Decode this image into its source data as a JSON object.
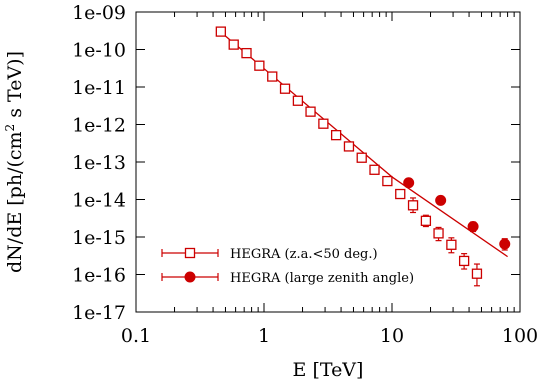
{
  "chart_data": {
    "type": "scatter",
    "scale": {
      "x": "log",
      "y": "log"
    },
    "xlim": [
      0.1,
      100
    ],
    "ylim": [
      1e-17,
      1e-09
    ],
    "xlabel": "E [TeV]",
    "ylabel_parts": [
      "dN/dE [ph/(cm",
      "2",
      " s TeV)]"
    ],
    "x_ticks": [
      {
        "value": 0.1,
        "label": "0.1"
      },
      {
        "value": 1,
        "label": "1"
      },
      {
        "value": 10,
        "label": "10"
      },
      {
        "value": 100,
        "label": "100"
      }
    ],
    "y_ticks": [
      {
        "value": 1e-09,
        "label": "1e-09"
      },
      {
        "value": 1e-10,
        "label": "1e-10"
      },
      {
        "value": 1e-11,
        "label": "1e-11"
      },
      {
        "value": 1e-12,
        "label": "1e-12"
      },
      {
        "value": 1e-13,
        "label": "1e-13"
      },
      {
        "value": 1e-14,
        "label": "1e-14"
      },
      {
        "value": 1e-15,
        "label": "1e-15"
      },
      {
        "value": 1e-16,
        "label": "1e-16"
      },
      {
        "value": 1e-17,
        "label": "1e-17"
      }
    ],
    "legend_position": "bottom-left",
    "series": [
      {
        "name": "HEGRA (z.a.<50 deg.)",
        "marker": "open-square",
        "color": "#cc0000",
        "points": [
          {
            "x": 0.46,
            "y": 3e-10
          },
          {
            "x": 0.58,
            "y": 1.35e-10
          },
          {
            "x": 0.73,
            "y": 8e-11
          },
          {
            "x": 0.92,
            "y": 3.7e-11
          },
          {
            "x": 1.16,
            "y": 1.9e-11
          },
          {
            "x": 1.46,
            "y": 9e-12
          },
          {
            "x": 1.84,
            "y": 4.3e-12
          },
          {
            "x": 2.31,
            "y": 2.2e-12
          },
          {
            "x": 2.91,
            "y": 1.05e-12
          },
          {
            "x": 3.66,
            "y": 5.2e-13
          },
          {
            "x": 4.61,
            "y": 2.6e-13
          },
          {
            "x": 5.8,
            "y": 1.3e-13
          },
          {
            "x": 7.3,
            "y": 6.2e-14
          },
          {
            "x": 9.2,
            "y": 3.1e-14
          },
          {
            "x": 11.6,
            "y": 1.4e-14
          },
          {
            "x": 14.6,
            "y": 7e-15,
            "yerr": [
              4.5e-15,
              1.1e-14
            ]
          },
          {
            "x": 18.4,
            "y": 2.7e-15,
            "yerr": [
              1.9e-15,
              3.8e-15
            ]
          },
          {
            "x": 23.1,
            "y": 1.25e-15,
            "yerr": [
              8e-16,
              1.8e-15
            ]
          },
          {
            "x": 29.1,
            "y": 6.2e-16,
            "yerr": [
              3.8e-16,
              9.5e-16
            ]
          },
          {
            "x": 36.6,
            "y": 2.3e-16,
            "yerr": [
              1.4e-16,
              3.6e-16
            ]
          },
          {
            "x": 46.1,
            "y": 1.05e-16,
            "yerr": [
              5e-17,
              1.9e-16
            ]
          }
        ]
      },
      {
        "name": "HEGRA (large zenith angle)",
        "marker": "filled-circle",
        "color": "#cc0000",
        "points": [
          {
            "x": 13.5,
            "y": 2.8e-14,
            "yerr": [
              2.3e-14,
              3.4e-14
            ]
          },
          {
            "x": 24.0,
            "y": 9.5e-15,
            "yerr": [
              7.8e-15,
              1.15e-14
            ]
          },
          {
            "x": 43.0,
            "y": 1.9e-15,
            "yerr": [
              1.4e-15,
              2.5e-15
            ]
          },
          {
            "x": 76.0,
            "y": 6.5e-16,
            "yerr": [
              4.5e-16,
              9e-16
            ]
          }
        ]
      }
    ],
    "fit_line": {
      "color": "#cc0000",
      "points": [
        {
          "x": 0.45,
          "y": 3.1e-10
        },
        {
          "x": 10.0,
          "y": 4e-14
        },
        {
          "x": 80.0,
          "y": 3e-16
        }
      ]
    }
  }
}
